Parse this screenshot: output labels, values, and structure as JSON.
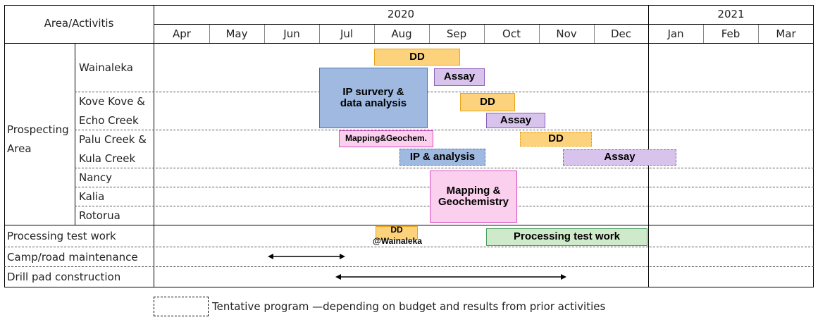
{
  "header": {
    "area_label": "Area/Activitis",
    "year_2020": "2020",
    "year_2021": "2021",
    "months": [
      "Apr",
      "May",
      "Jun",
      "Jul",
      "Aug",
      "Sep",
      "Oct",
      "Nov",
      "Dec",
      "Jan",
      "Feb",
      "Mar"
    ]
  },
  "group": {
    "label_line1": "Prospecting",
    "label_line2": "Area"
  },
  "subareas": {
    "wainaleka": "Wainaleka",
    "kove_line1": "Kove Kove &",
    "kove_line2": "Echo Creek",
    "palu_line1": "Palu Creek &",
    "palu_line2": "Kula Creek",
    "nancy": "Nancy",
    "kalia": "Kalia",
    "rotorua": "Rotorua"
  },
  "rows": {
    "processing": "Processing test work",
    "camp": "Camp/road maintenance",
    "drill": "Drill pad construction"
  },
  "bars": {
    "dd": "DD",
    "assay": "Assay",
    "ip_line1": "IP survery &",
    "ip_line2": "data analysis",
    "mapping_geochem_short": "Mapping&Geochem.",
    "ip_analysis": "IP & analysis",
    "mapping_line1": "Mapping &",
    "mapping_line2": "Geochemistry",
    "dd_wainaleka_line2": "@Wainaleka",
    "processing_bar": "Processing test work"
  },
  "legend": {
    "text": "Tentative program —depending on budget and results from prior activities"
  },
  "colors": {
    "dd": "#fdd27c",
    "assay": "#d7c3ec",
    "ip": "#9fb9e0",
    "mapping": "#fbd0ef",
    "processing": "#cfeacb"
  }
}
